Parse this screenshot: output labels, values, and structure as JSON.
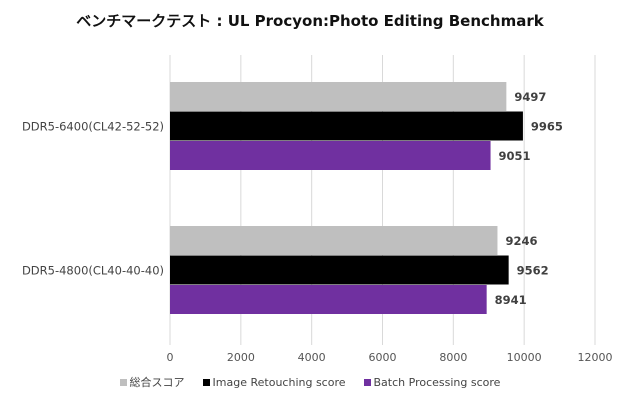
{
  "chart_data": {
    "type": "bar",
    "orientation": "horizontal",
    "title": "ベンチマークテスト : UL Procyon:Photo Editing Benchmark",
    "categories": [
      "DDR5-6400(CL42-52-52)",
      "DDR5-4800(CL40-40-40)"
    ],
    "series": [
      {
        "name": "総合スコア",
        "color": "#bfbfbf",
        "values": [
          9497,
          9246
        ]
      },
      {
        "name": "Image Retouching score",
        "color": "#000000",
        "values": [
          9965,
          9562
        ]
      },
      {
        "name": "Batch Processing score",
        "color": "#7030a0",
        "values": [
          9051,
          8941
        ]
      }
    ],
    "xlim": [
      0,
      12000
    ],
    "xticks": [
      "0",
      "2000",
      "4000",
      "6000",
      "8000",
      "10000",
      "12000"
    ],
    "grid": true,
    "legend_position": "bottom",
    "xlabel": "",
    "ylabel": ""
  }
}
